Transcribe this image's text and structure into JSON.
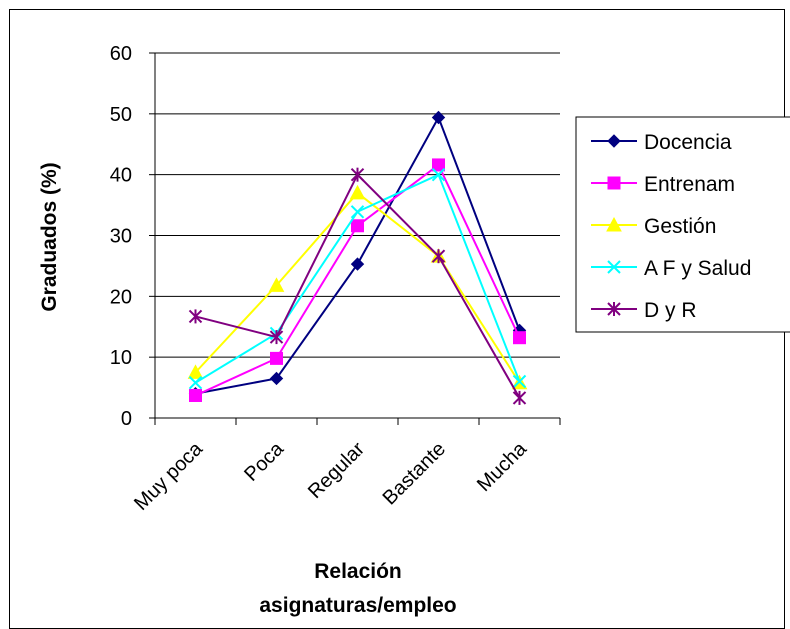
{
  "chart_data": {
    "type": "line",
    "categories": [
      "Muy poca",
      "Poca",
      "Regular",
      "Bastante",
      "Mucha"
    ],
    "ylabel": "Graduados (%)",
    "xlabel_lines": [
      "Relación",
      "asignaturas/empleo"
    ],
    "ylim": [
      0,
      60
    ],
    "yticks": [
      0,
      10,
      20,
      30,
      40,
      50,
      60
    ],
    "grid": true,
    "legend_position": "right",
    "series": [
      {
        "name": "Docencia",
        "color": "#000080",
        "marker": "diamond",
        "values": [
          4,
          6.5,
          25.3,
          49.4,
          14.4
        ]
      },
      {
        "name": "Entrenam",
        "color": "#FF00FF",
        "marker": "square",
        "values": [
          3.7,
          9.8,
          31.6,
          41.6,
          13.2
        ]
      },
      {
        "name": "Gestión",
        "color": "#FFFF00",
        "marker": "triangle",
        "values": [
          7.5,
          21.8,
          37.0,
          26.6,
          5.8
        ]
      },
      {
        "name": "A F y Salud",
        "color": "#00FFFF",
        "marker": "x",
        "values": [
          5.8,
          13.9,
          33.9,
          40.0,
          6.0
        ]
      },
      {
        "name": "D y R",
        "color": "#800080",
        "marker": "star",
        "values": [
          16.7,
          13.3,
          40.0,
          26.6,
          3.3
        ]
      }
    ]
  }
}
